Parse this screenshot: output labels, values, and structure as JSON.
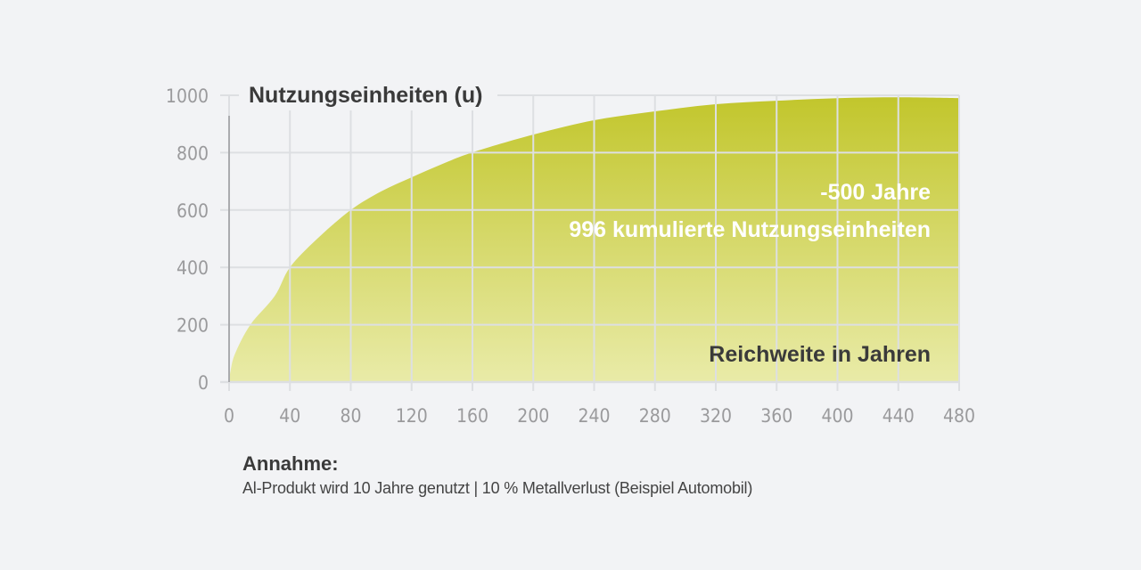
{
  "chart_data": {
    "type": "area",
    "title": "Nutzungseinheiten (u)",
    "xlabel": "Reichweite in Jahren",
    "ylabel": "Nutzungseinheiten (u)",
    "xlim": [
      0,
      480
    ],
    "ylim": [
      0,
      1000
    ],
    "grid": true,
    "x_ticks": [
      "0",
      "40",
      "80",
      "120",
      "160",
      "200",
      "240",
      "280",
      "320",
      "360",
      "400",
      "440",
      "480"
    ],
    "y_ticks": [
      "0",
      "200",
      "400",
      "600",
      "800",
      "1000"
    ],
    "x_tick_values": [
      0,
      40,
      80,
      120,
      160,
      200,
      240,
      280,
      320,
      360,
      400,
      440,
      480
    ],
    "y_tick_values": [
      0,
      200,
      400,
      600,
      800,
      1000
    ],
    "series": [
      {
        "name": "kumulierte Nutzungseinheiten",
        "x": [
          0,
          1,
          4,
          14,
          30,
          40,
          58,
          80,
          100,
          120,
          140,
          160,
          200,
          240,
          280,
          320,
          360,
          400,
          440,
          480
        ],
        "values": [
          0,
          40,
          100,
          200,
          300,
          400,
          500,
          600,
          665,
          714,
          760,
          801,
          863,
          913,
          944,
          969,
          981,
          990,
          993,
          990
        ]
      }
    ],
    "annotations": [
      "-500 Jahre",
      "996 kumulierte Nutzungseinheiten"
    ],
    "colors": {
      "fill_top": "#c2c62c",
      "fill_bottom": "#e9eba8",
      "grid": "#dddfe2",
      "axis": "#9a9a9c",
      "text": "#3a3a3a"
    }
  },
  "note": {
    "title": "Annahme:",
    "text": "Al-Produkt wird 10 Jahre genutzt | 10 % Metallverlust (Beispiel Automobil)"
  }
}
